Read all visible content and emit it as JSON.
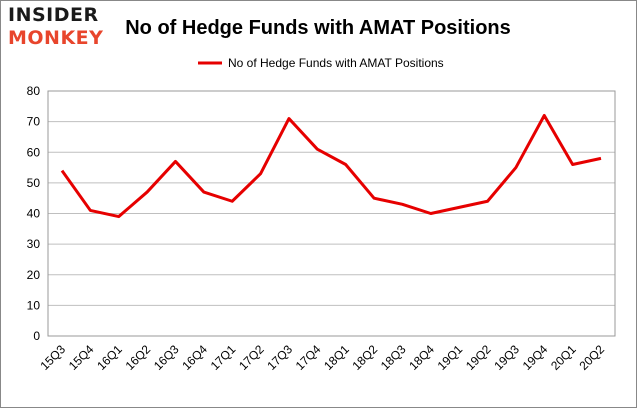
{
  "logo": {
    "line1": "INSIDER",
    "line2": "MONKEY"
  },
  "chart_data": {
    "type": "line",
    "title": "No of Hedge Funds with AMAT Positions",
    "xlabel": "",
    "ylabel": "",
    "categories": [
      "15Q3",
      "15Q4",
      "16Q1",
      "16Q2",
      "16Q3",
      "16Q4",
      "17Q1",
      "17Q2",
      "17Q3",
      "17Q4",
      "18Q1",
      "18Q2",
      "18Q3",
      "18Q4",
      "19Q1",
      "19Q2",
      "19Q3",
      "19Q4",
      "20Q1",
      "20Q2"
    ],
    "series": [
      {
        "name": "No of Hedge Funds with AMAT Positions",
        "color": "#e60000",
        "values": [
          54,
          41,
          39,
          47,
          57,
          47,
          44,
          53,
          71,
          61,
          56,
          45,
          43,
          40,
          42,
          44,
          55,
          72,
          56,
          58
        ]
      }
    ],
    "ylim": [
      0,
      80
    ],
    "yticks": [
      0,
      10,
      20,
      30,
      40,
      50,
      60,
      70,
      80
    ],
    "grid": true,
    "legend": "top-center"
  }
}
